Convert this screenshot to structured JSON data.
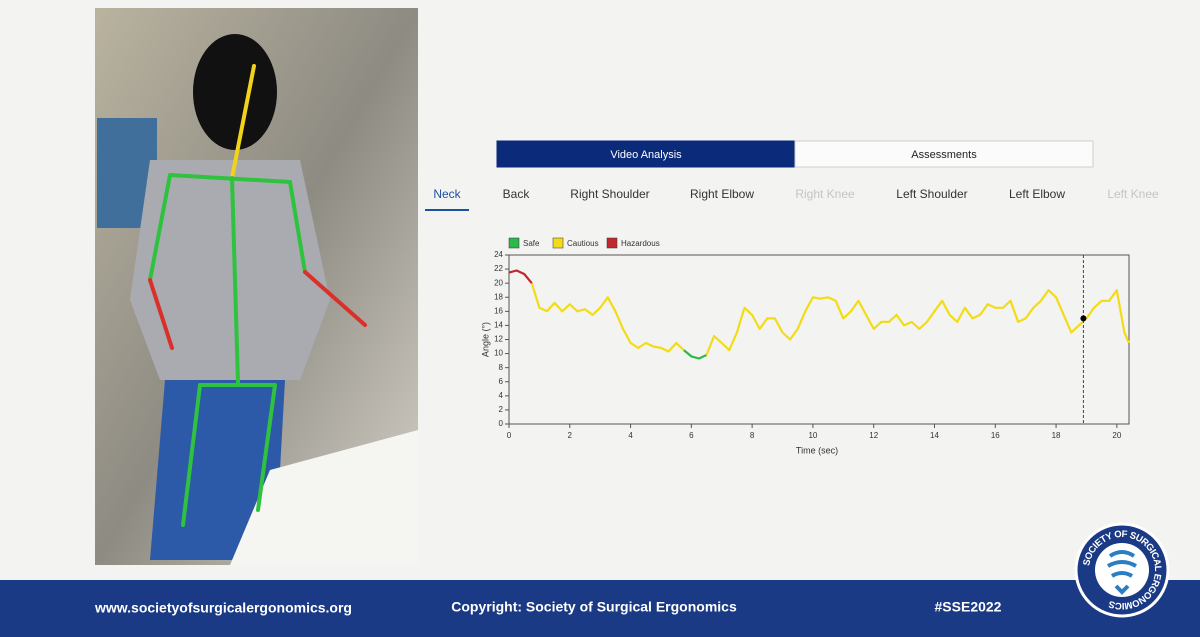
{
  "tabs": [
    {
      "label": "Video Analysis",
      "active": true
    },
    {
      "label": "Assessments",
      "active": false
    }
  ],
  "joint_tabs": [
    {
      "label": "Neck",
      "active": true,
      "disabled": false
    },
    {
      "label": "Back",
      "active": false,
      "disabled": false
    },
    {
      "label": "Right Shoulder",
      "active": false,
      "disabled": false
    },
    {
      "label": "Right Elbow",
      "active": false,
      "disabled": false
    },
    {
      "label": "Right Knee",
      "active": false,
      "disabled": true
    },
    {
      "label": "Left Shoulder",
      "active": false,
      "disabled": false
    },
    {
      "label": "Left Elbow",
      "active": false,
      "disabled": false
    },
    {
      "label": "Left Knee",
      "active": false,
      "disabled": true
    }
  ],
  "chart_data": {
    "type": "line",
    "x_label": "Time (sec)",
    "y_label": "Angle (°)",
    "xlim": [
      0,
      20.4
    ],
    "ylim": [
      0,
      24
    ],
    "xticks": [
      0,
      2,
      4,
      6,
      8,
      10,
      12,
      14,
      16,
      18,
      20
    ],
    "yticks": [
      0,
      2,
      4,
      6,
      8,
      10,
      12,
      14,
      16,
      18,
      20,
      22,
      24
    ],
    "x": [
      0,
      0.25,
      0.5,
      0.75,
      1,
      1.25,
      1.5,
      1.75,
      2,
      2.25,
      2.5,
      2.75,
      3,
      3.25,
      3.5,
      3.75,
      4,
      4.25,
      4.5,
      4.75,
      5,
      5.25,
      5.5,
      5.75,
      6,
      6.25,
      6.5,
      6.75,
      7,
      7.25,
      7.5,
      7.75,
      8,
      8.25,
      8.5,
      8.75,
      9,
      9.25,
      9.5,
      9.75,
      10,
      10.25,
      10.5,
      10.75,
      11,
      11.25,
      11.5,
      11.75,
      12,
      12.25,
      12.5,
      12.75,
      13,
      13.25,
      13.5,
      13.75,
      14,
      14.25,
      14.5,
      14.75,
      15,
      15.25,
      15.5,
      15.75,
      16,
      16.25,
      16.5,
      16.75,
      17,
      17.25,
      17.5,
      17.75,
      18,
      18.25,
      18.5,
      18.75,
      19,
      19.25,
      19.5,
      19.75,
      20,
      20.25,
      20.4
    ],
    "series": [
      {
        "name": "Safe",
        "color": "#2db84a",
        "values": [
          null,
          null,
          null,
          null,
          null,
          null,
          null,
          null,
          null,
          null,
          null,
          null,
          null,
          null,
          null,
          null,
          null,
          null,
          null,
          null,
          null,
          null,
          null,
          10.5,
          9.6,
          9.3,
          9.8,
          null,
          null,
          null,
          null,
          null,
          null,
          null,
          null,
          null,
          null,
          null,
          null,
          null,
          null,
          null,
          null,
          null,
          null,
          null,
          null,
          null,
          null,
          null,
          null,
          null,
          null,
          null,
          null,
          null,
          null,
          null,
          null,
          null,
          null,
          null,
          null,
          null,
          null,
          null,
          null,
          null,
          null,
          null,
          null,
          null,
          null,
          null,
          null,
          null,
          null,
          null,
          null,
          null,
          null,
          null,
          null
        ]
      },
      {
        "name": "Cautious",
        "color": "#f2dc17",
        "values": [
          null,
          null,
          null,
          20,
          16.5,
          16,
          17.2,
          16,
          17,
          16,
          16.3,
          15.5,
          16.5,
          18,
          16,
          13.5,
          11.5,
          10.8,
          11.5,
          11,
          10.8,
          10.3,
          11.5,
          10.5,
          null,
          null,
          9.8,
          12.5,
          11.5,
          10.5,
          13,
          16.5,
          15.5,
          13.5,
          15,
          15,
          13,
          12,
          13.5,
          16,
          18,
          17.8,
          18,
          17.5,
          15,
          16,
          17.5,
          15.5,
          13.5,
          14.5,
          14.5,
          15.5,
          14,
          14.5,
          13.5,
          14.5,
          16,
          17.5,
          15.5,
          14.5,
          16.5,
          15,
          15.5,
          17,
          16.5,
          16.5,
          17.5,
          14.5,
          15,
          16.5,
          17.5,
          19,
          18,
          15.5,
          13,
          14,
          15,
          16.5,
          17.5,
          17.5,
          19,
          13,
          11.5
        ]
      },
      {
        "name": "Hazardous",
        "color": "#c0282d",
        "values": [
          21.5,
          21.8,
          21.3,
          20,
          null,
          null,
          null,
          null,
          null,
          null,
          null,
          null,
          null,
          null,
          null,
          null,
          null,
          null,
          null,
          null,
          null,
          null,
          null,
          null,
          null,
          null,
          null,
          null,
          null,
          null,
          null,
          null,
          null,
          null,
          null,
          null,
          null,
          null,
          null,
          null,
          null,
          null,
          null,
          null,
          null,
          null,
          null,
          null,
          null,
          null,
          null,
          null,
          null,
          null,
          null,
          null,
          null,
          null,
          null,
          null,
          null,
          null,
          null,
          null,
          null,
          null,
          null,
          null,
          null,
          null,
          null,
          null,
          null,
          null,
          null,
          null,
          null,
          null,
          null,
          null,
          null,
          null,
          null
        ]
      }
    ],
    "cursor": {
      "x": 18.9,
      "value": 15
    }
  },
  "footer": {
    "url": "www.societyofsurgicalergonomics.org",
    "copyright": "Copyright: Society of Surgical Ergonomics",
    "hashtag": "#SSE2022"
  },
  "logo_text": "SOCIETY OF SURGICAL ERGONOMICS"
}
